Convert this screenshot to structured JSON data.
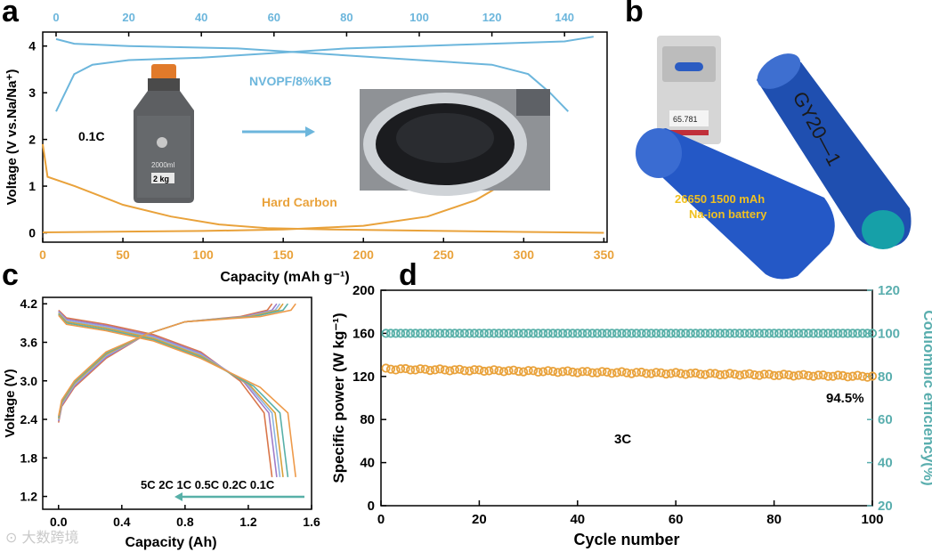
{
  "panels": {
    "a": {
      "label": "a",
      "ylabel": "Voltage (V vs.Na/Na⁺)",
      "xlabel_bottom": "Capacity (mAh g⁻¹)",
      "top_ticks": [
        "0",
        "20",
        "40",
        "60",
        "80",
        "100",
        "120",
        "140"
      ],
      "bottom_ticks": [
        "0",
        "50",
        "100",
        "150",
        "200",
        "250",
        "300",
        "350"
      ],
      "y_ticks": [
        "0",
        "1",
        "2",
        "3",
        "4"
      ],
      "label_cathode": "NVOPF/8%KB",
      "label_anode": "Hard Carbon",
      "label_rate": "0.1C",
      "bottle_text": [
        "2000ml",
        "2 kg"
      ],
      "colors": {
        "cathode": "#6cb6dc",
        "anode": "#e9a23b"
      }
    },
    "b": {
      "label": "b",
      "battery_text_line1": "26650  1500 mAh",
      "battery_text_line2": "Na-ion battery",
      "scale_reading": "65.781",
      "handwriting": "GY20—1"
    },
    "c": {
      "label": "c",
      "ylabel": "Voltage (V)",
      "xlabel": "Capacity (Ah)",
      "y_ticks": [
        "1.2",
        "1.8",
        "2.4",
        "3.0",
        "3.6",
        "4.2"
      ],
      "x_ticks": [
        "0.0",
        "0.4",
        "0.8",
        "1.2",
        "1.6"
      ],
      "rates_label": "5C  2C  1C  0.5C  0.2C  0.1C",
      "series_colors": [
        "#d9764a",
        "#a07cc8",
        "#8cb4e0",
        "#d9a03a",
        "#58b0a8",
        "#ee9a4a"
      ]
    },
    "d": {
      "label": "d",
      "ylabel_left": "Specific power (W kg⁻¹)",
      "ylabel_right": "Coulombic efficiency(%)",
      "xlabel": "Cycle number",
      "left_ticks": [
        "0",
        "40",
        "80",
        "120",
        "160",
        "200"
      ],
      "right_ticks": [
        "20",
        "40",
        "60",
        "80",
        "100",
        "120"
      ],
      "x_ticks": [
        "0",
        "20",
        "40",
        "60",
        "80",
        "100"
      ],
      "annotation_retention": "94.5%",
      "annotation_rate": "3C",
      "colors": {
        "power": "#e9a23b",
        "ce": "#58b0a8",
        "right_axis": "#5aaeae"
      }
    }
  },
  "chart_data": [
    {
      "type": "line",
      "panel": "a",
      "xlabel": "Capacity (mAh g⁻¹)",
      "ylabel": "Voltage (V vs.Na/Na⁺)",
      "ylim": [
        -0.2,
        4.3
      ],
      "series": [
        {
          "name": "NVOPF/8%KB",
          "axis": "top",
          "xlim": [
            0,
            150
          ],
          "charge": [
            [
              0,
              2.6
            ],
            [
              5,
              3.4
            ],
            [
              10,
              3.6
            ],
            [
              20,
              3.7
            ],
            [
              40,
              3.75
            ],
            [
              60,
              3.85
            ],
            [
              80,
              3.95
            ],
            [
              100,
              4.0
            ],
            [
              120,
              4.05
            ],
            [
              140,
              4.1
            ],
            [
              148,
              4.2
            ]
          ],
          "discharge": [
            [
              0,
              4.15
            ],
            [
              5,
              4.05
            ],
            [
              20,
              4.0
            ],
            [
              50,
              3.95
            ],
            [
              70,
              3.85
            ],
            [
              100,
              3.7
            ],
            [
              120,
              3.6
            ],
            [
              130,
              3.4
            ],
            [
              136,
              3.0
            ],
            [
              141,
              2.6
            ]
          ]
        },
        {
          "name": "Hard Carbon",
          "axis": "bottom",
          "xlim": [
            0,
            350
          ],
          "discharge": [
            [
              0,
              1.9
            ],
            [
              3,
              1.2
            ],
            [
              20,
              1.0
            ],
            [
              50,
              0.6
            ],
            [
              80,
              0.35
            ],
            [
              110,
              0.18
            ],
            [
              140,
              0.1
            ],
            [
              180,
              0.07
            ],
            [
              250,
              0.04
            ],
            [
              300,
              0.02
            ],
            [
              350,
              0.0
            ]
          ],
          "charge": [
            [
              0,
              0.01
            ],
            [
              100,
              0.04
            ],
            [
              150,
              0.07
            ],
            [
              200,
              0.15
            ],
            [
              240,
              0.35
            ],
            [
              270,
              0.7
            ],
            [
              285,
              1.0
            ],
            [
              293,
              1.5
            ],
            [
              297,
              2.0
            ]
          ]
        }
      ]
    },
    {
      "type": "line",
      "panel": "c",
      "xlabel": "Capacity (Ah)",
      "ylabel": "Voltage (V)",
      "xlim": [
        -0.1,
        1.6
      ],
      "ylim": [
        1.0,
        4.3
      ],
      "series": [
        {
          "name": "5C",
          "cap": 1.35
        },
        {
          "name": "2C",
          "cap": 1.38
        },
        {
          "name": "1C",
          "cap": 1.4
        },
        {
          "name": "0.5C",
          "cap": 1.42
        },
        {
          "name": "0.2C",
          "cap": 1.45
        },
        {
          "name": "0.1C",
          "cap": 1.5
        }
      ]
    },
    {
      "type": "scatter",
      "panel": "d",
      "xlabel": "Cycle number",
      "ylabel": "Specific power (W kg⁻¹)",
      "y2label": "Coulombic efficiency(%)",
      "xlim": [
        0,
        100
      ],
      "ylim": [
        0,
        200
      ],
      "y2lim": [
        20,
        120
      ],
      "series": [
        {
          "name": "Specific power",
          "axis": "left",
          "start": 127,
          "end": 120,
          "cycles": 100
        },
        {
          "name": "Coulombic efficiency",
          "axis": "right",
          "value": 100,
          "cycles": 100
        }
      ]
    }
  ]
}
